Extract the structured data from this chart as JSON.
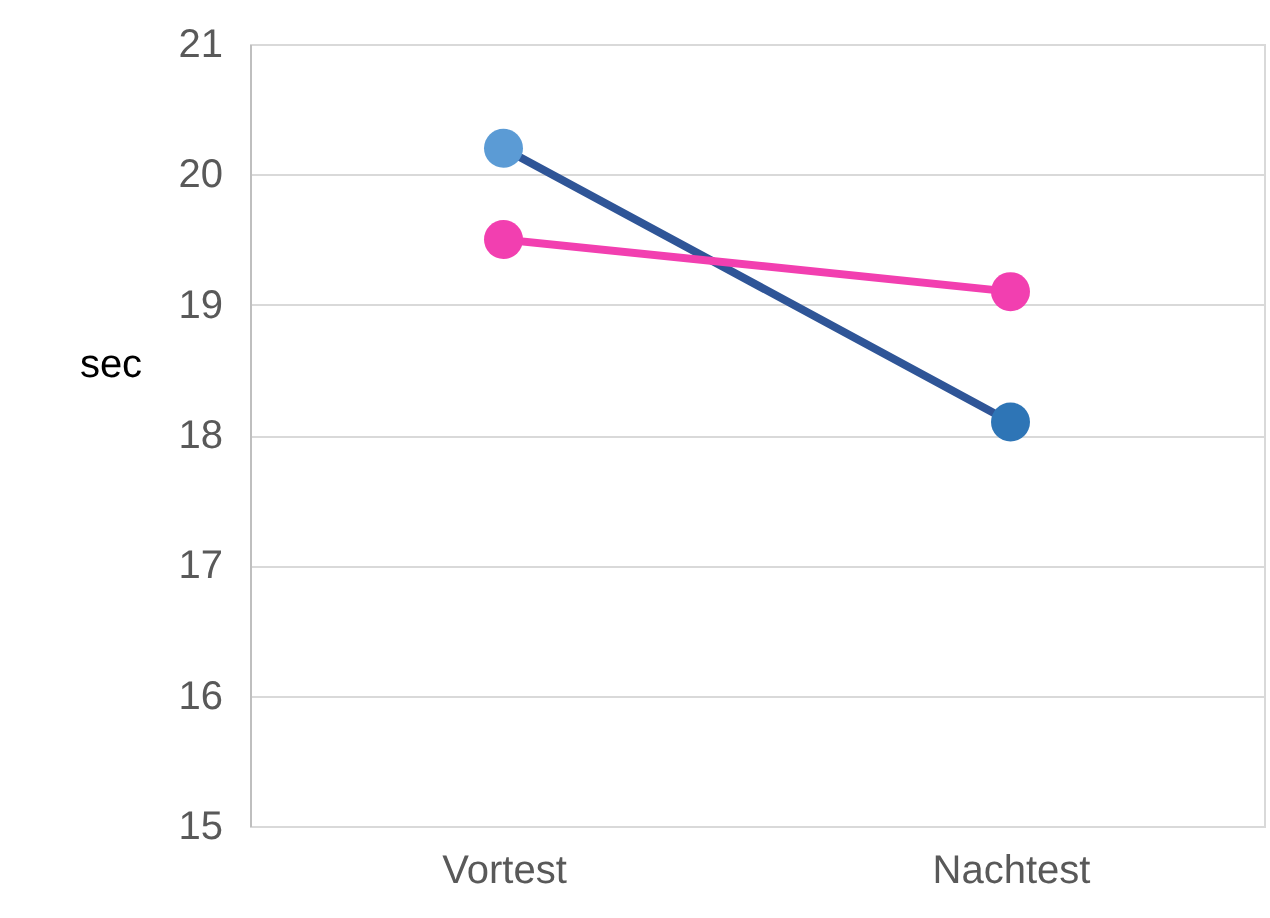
{
  "chart_data": {
    "type": "line",
    "ylabel": "sec",
    "categories": [
      "Vortest",
      "Nachtest"
    ],
    "series": [
      {
        "color": "#2f5597",
        "colors": [
          "#5b9bd5",
          "#2e75b6"
        ],
        "values": [
          20.2,
          18.1
        ]
      },
      {
        "color": "#f23fb0",
        "colors": [
          "#f23fb0",
          "#f23fb0"
        ],
        "values": [
          19.5,
          19.1
        ]
      }
    ],
    "ylim": [
      15,
      21
    ],
    "yticks": [
      15,
      16,
      17,
      18,
      19,
      20,
      21
    ],
    "grid": "y",
    "marker": "circle"
  }
}
